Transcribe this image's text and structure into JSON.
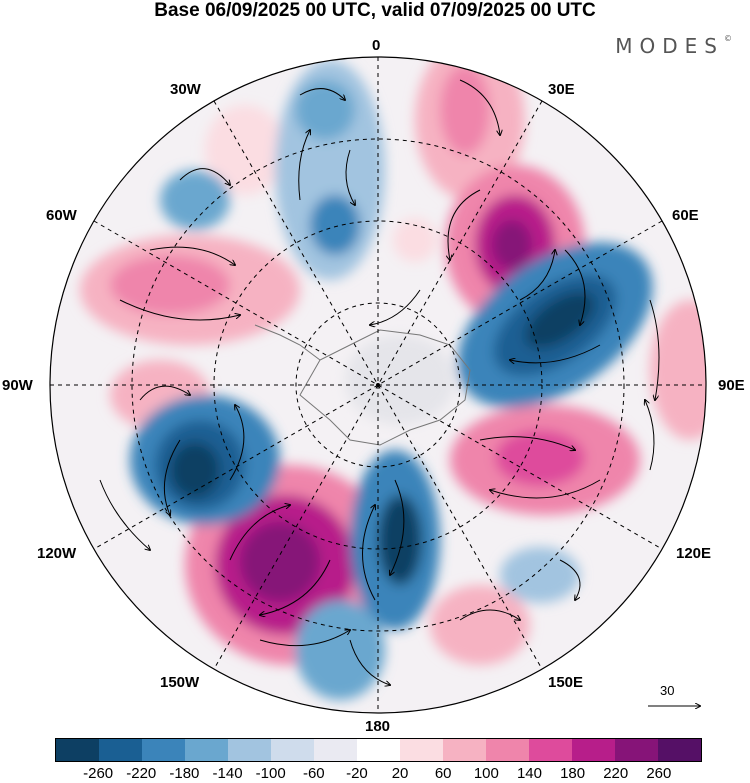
{
  "title": "Base 06/09/2025 00 UTC, valid 07/09/2025 00 UTC",
  "brand": "MODES",
  "brand_mark": "©",
  "longitude_labels": {
    "top": "0",
    "top_left": "30W",
    "top_right": "30E",
    "upper_left": "60W",
    "upper_right": "60E",
    "left": "90W",
    "right": "90E",
    "lower_left": "120W",
    "lower_right": "120E",
    "bottom_left": "150W",
    "bottom_right": "150E",
    "bottom": "180"
  },
  "reference_vector_label": "30",
  "colorbar": {
    "colors": [
      "#0d3f63",
      "#1a5f93",
      "#3b84ba",
      "#6aa7cf",
      "#a2c4e0",
      "#cfdcec",
      "#eaeaf2",
      "#ffffff",
      "#fbdde2",
      "#f6b2c2",
      "#ef85ab",
      "#de4b9c",
      "#b71e8a",
      "#861478",
      "#551066"
    ],
    "tick_labels": [
      "-260",
      "-220",
      "-180",
      "-140",
      "-100",
      "-60",
      "-20",
      "20",
      "60",
      "100",
      "140",
      "180",
      "220",
      "260"
    ]
  }
}
